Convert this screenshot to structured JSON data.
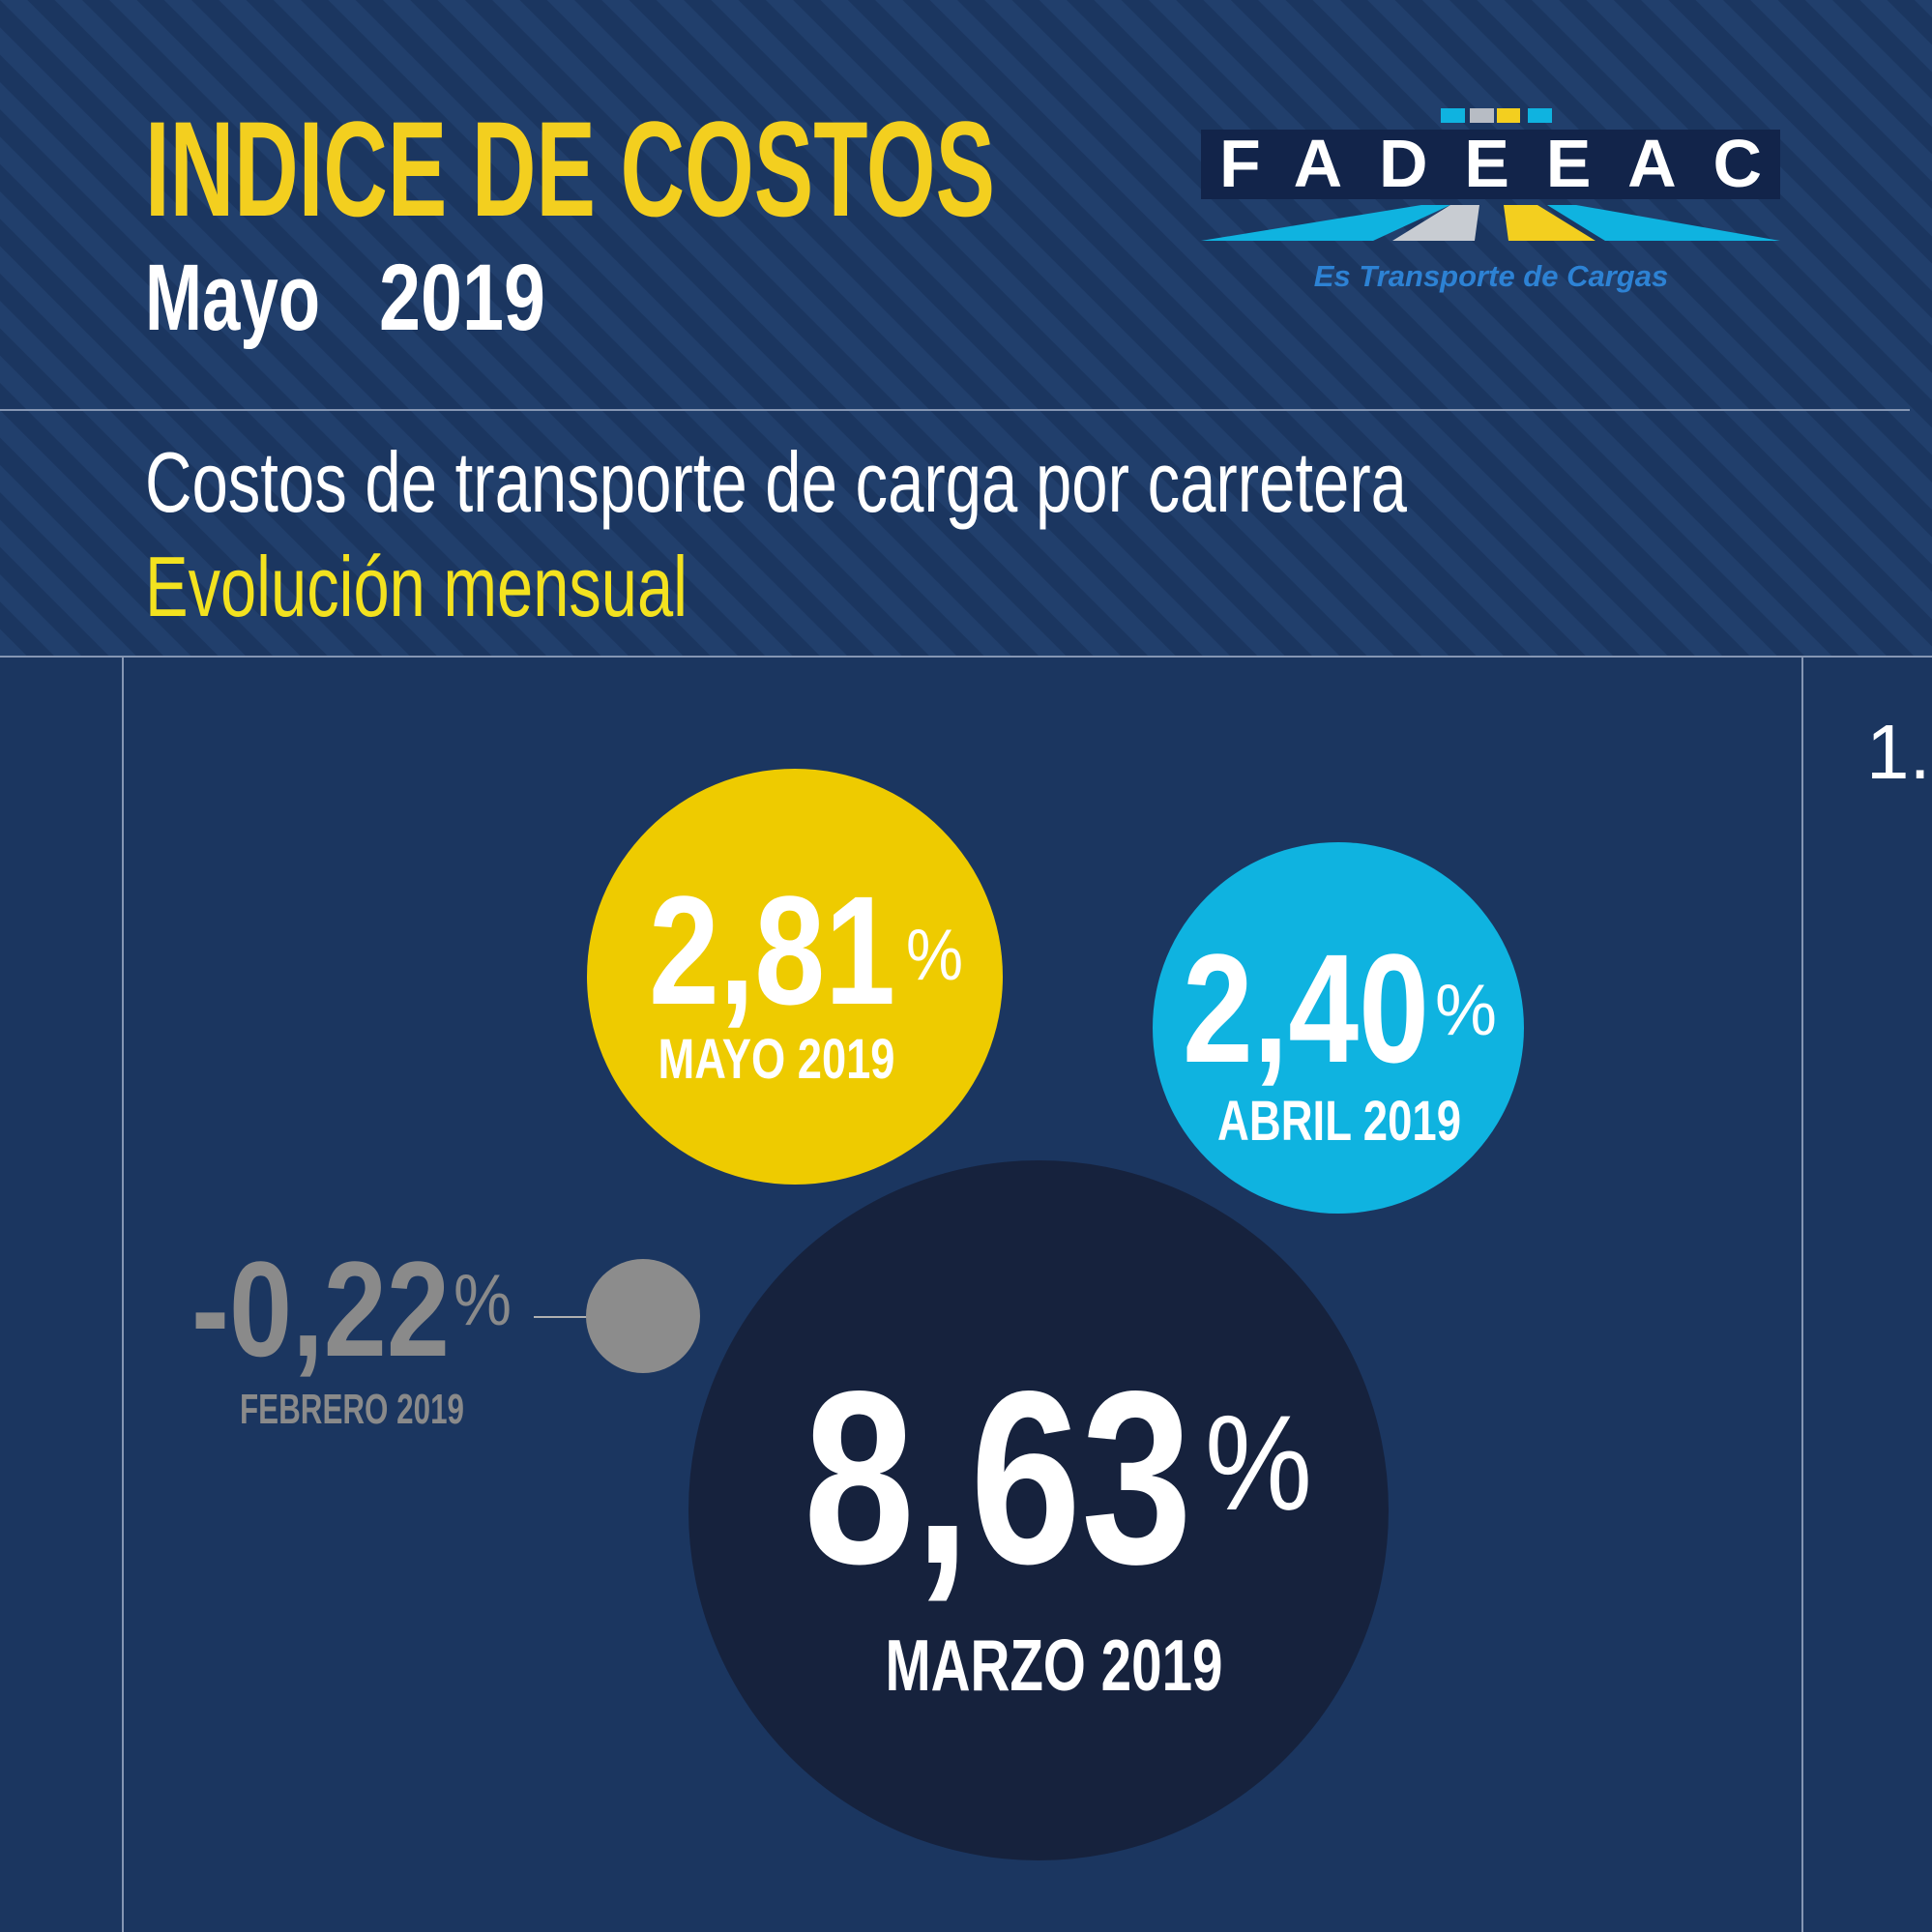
{
  "header": {
    "title": "INDICE DE COSTOS",
    "month": "Mayo",
    "year": "2019"
  },
  "logo": {
    "name": "FADEEAC",
    "tagline": "Es Transporte de Cargas"
  },
  "subtitle": "Costos de transporte de carga por carretera",
  "subtitle2": "Evolución mensual",
  "page_number": "1.",
  "bubbles": [
    {
      "value": "2,81",
      "unit": "%",
      "label": "MAYO 2019"
    },
    {
      "value": "2,40",
      "unit": "%",
      "label": "ABRIL 2019"
    },
    {
      "value": "8,63",
      "unit": "%",
      "label": "MARZO 2019"
    },
    {
      "value": "-0,22",
      "unit": "%",
      "label": "FEBRERO 2019"
    }
  ]
}
